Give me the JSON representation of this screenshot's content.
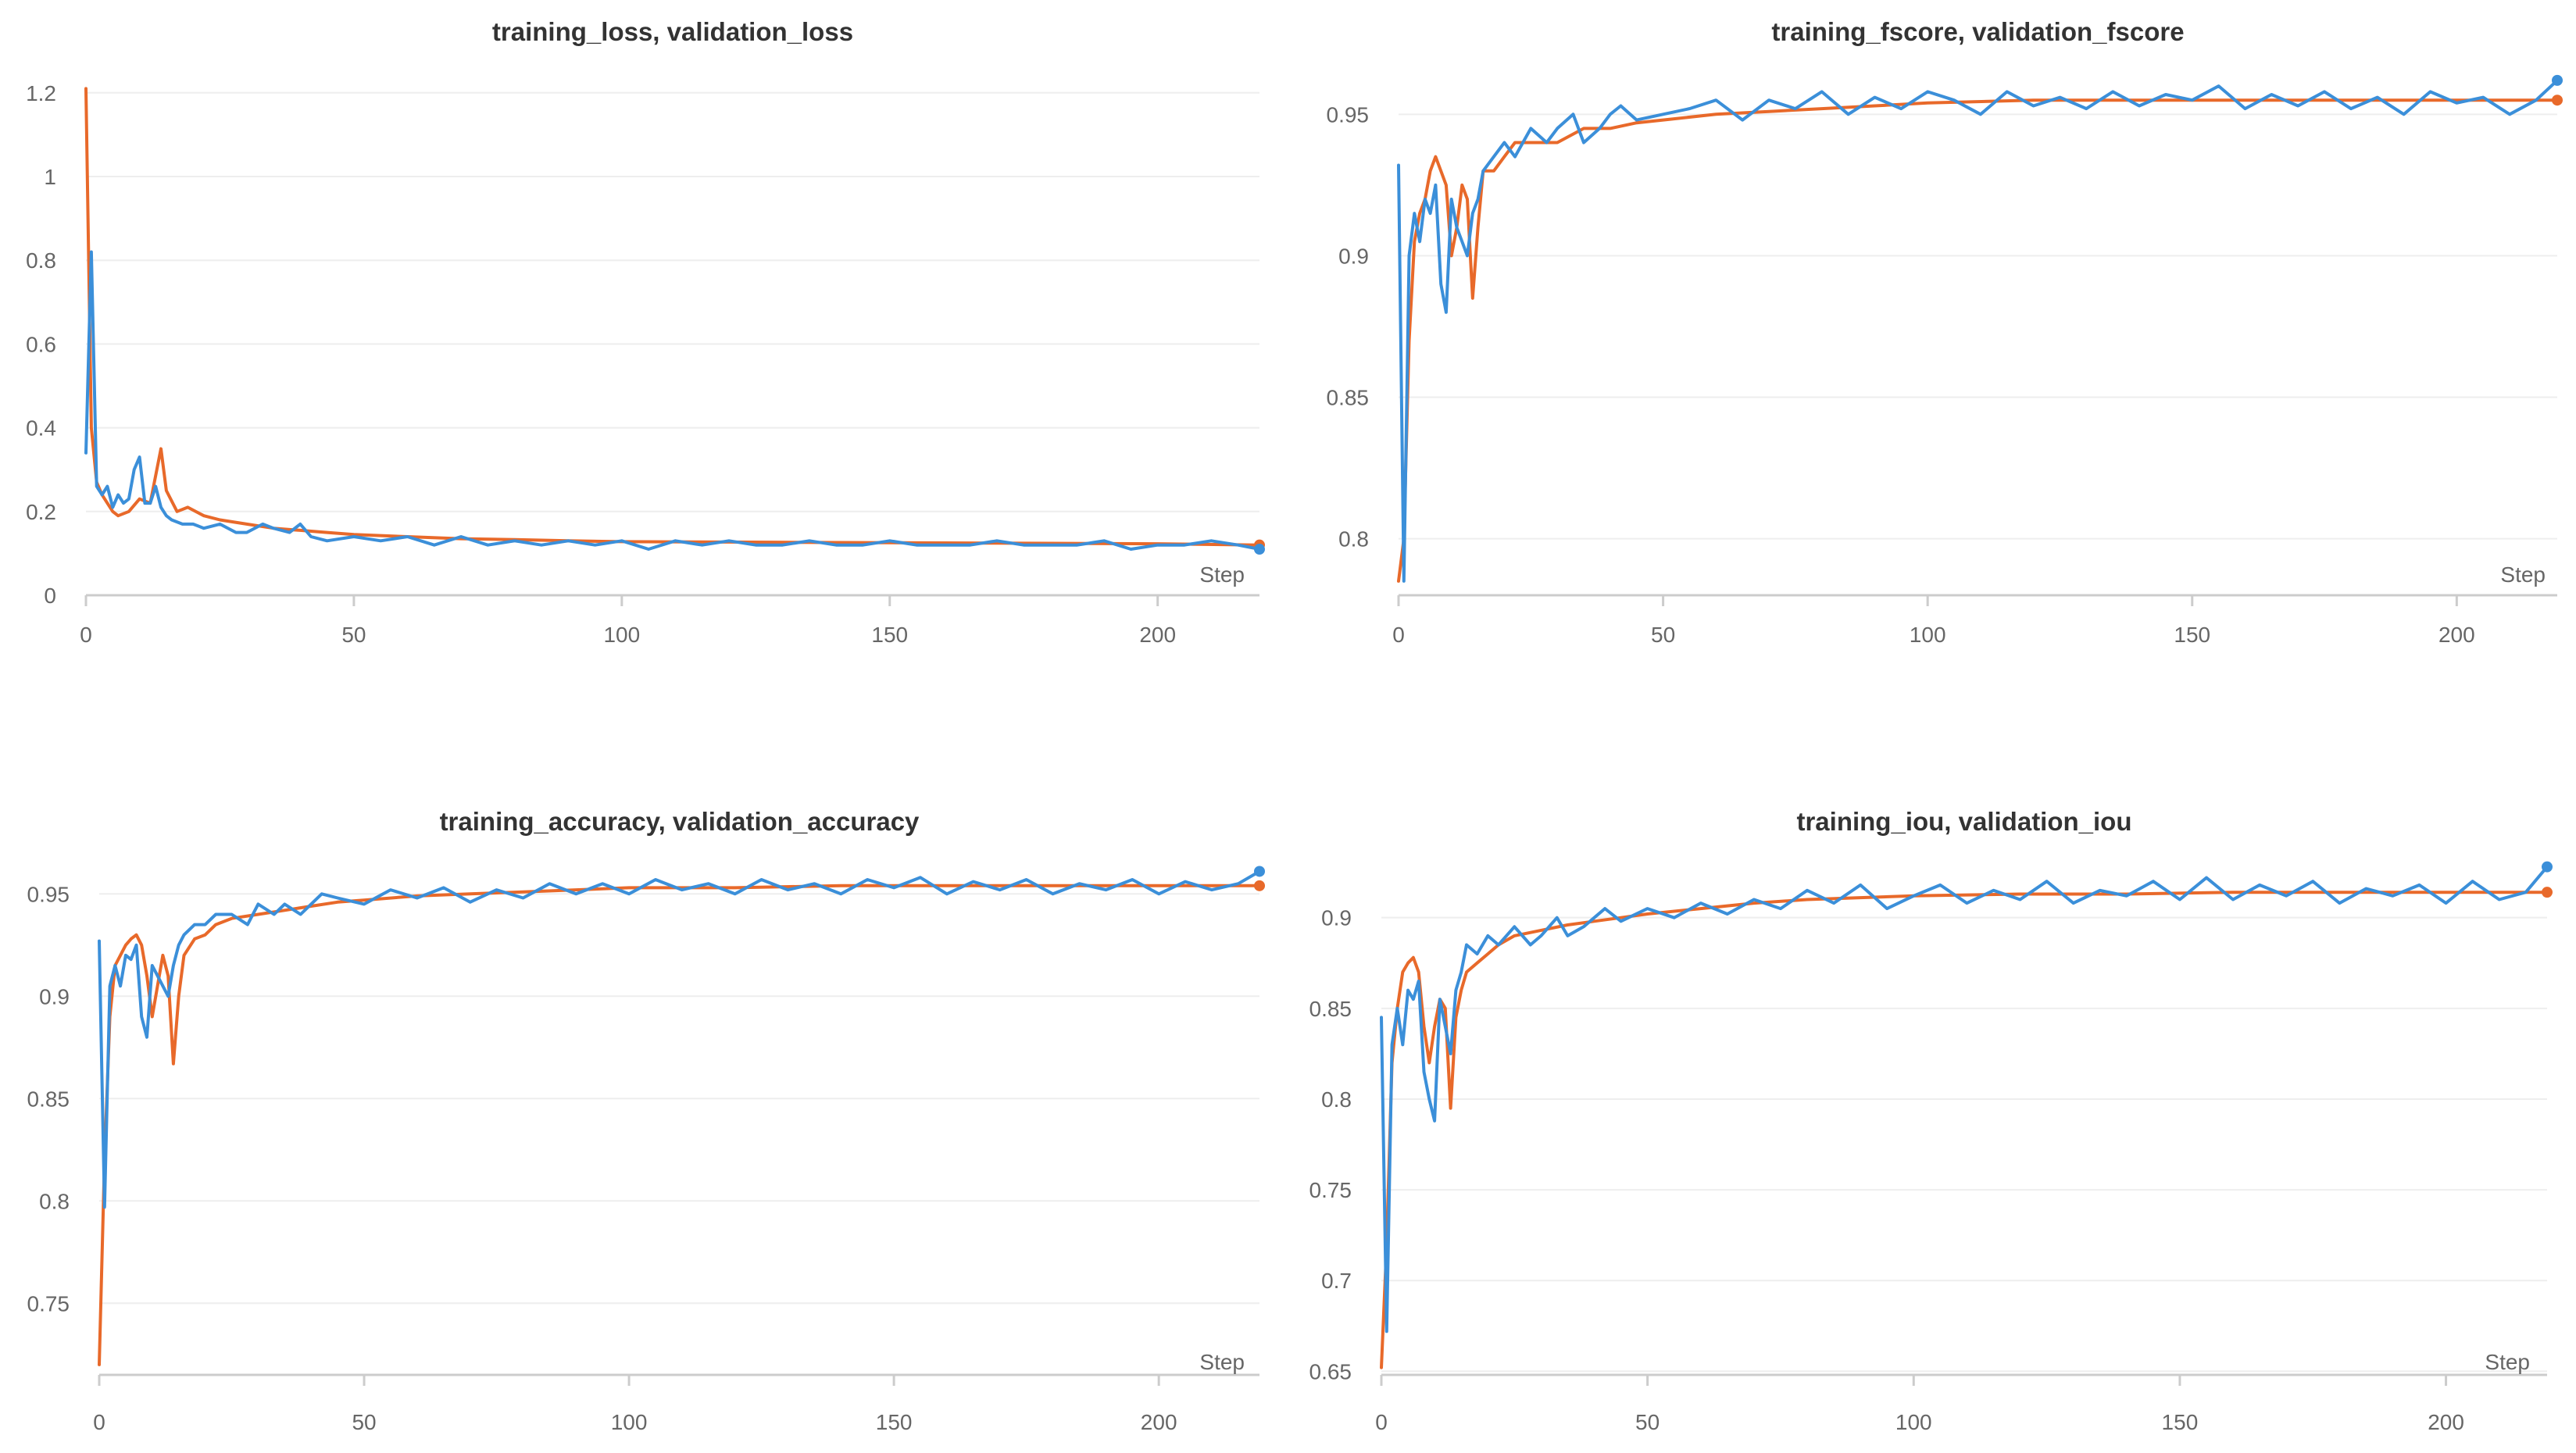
{
  "colors": {
    "training": "#e8692a",
    "validation": "#3b8fd9",
    "grid": "#eeeeee",
    "axis": "#cccccc",
    "text": "#666666",
    "title": "#333333"
  },
  "chart_data": [
    {
      "type": "line",
      "title": "training_loss, validation_loss",
      "xlabel": "Step",
      "ylabel": "",
      "xlim": [
        0,
        219
      ],
      "ylim": [
        0,
        1.25
      ],
      "xticks": [
        0,
        50,
        100,
        150,
        200
      ],
      "yticks": [
        0,
        0.2,
        0.4,
        0.6,
        0.8,
        1,
        1.2
      ],
      "ytick_labels": [
        "0",
        "0.2",
        "0.4",
        "0.6",
        "0.8",
        "1",
        "1.2"
      ],
      "grid": true,
      "series": [
        {
          "color": "#e8692a",
          "x": [
            0,
            1,
            2,
            3,
            4,
            5,
            6,
            8,
            10,
            12,
            14,
            15,
            17,
            19,
            22,
            25,
            30,
            35,
            40,
            45,
            50,
            60,
            70,
            80,
            90,
            100,
            120,
            140,
            160,
            180,
            200,
            219
          ],
          "y": [
            1.21,
            0.4,
            0.27,
            0.24,
            0.22,
            0.2,
            0.19,
            0.2,
            0.23,
            0.22,
            0.35,
            0.25,
            0.2,
            0.21,
            0.19,
            0.18,
            0.17,
            0.16,
            0.155,
            0.15,
            0.145,
            0.14,
            0.135,
            0.133,
            0.13,
            0.128,
            0.127,
            0.126,
            0.125,
            0.124,
            0.123,
            0.12
          ]
        },
        {
          "color": "#3b8fd9",
          "x": [
            0,
            1,
            2,
            3,
            4,
            5,
            6,
            7,
            8,
            9,
            10,
            11,
            12,
            13,
            14,
            15,
            16,
            18,
            20,
            22,
            25,
            28,
            30,
            33,
            35,
            38,
            40,
            42,
            45,
            50,
            55,
            60,
            65,
            70,
            75,
            80,
            85,
            90,
            95,
            100,
            105,
            110,
            115,
            120,
            125,
            130,
            135,
            140,
            145,
            150,
            155,
            160,
            165,
            170,
            175,
            180,
            185,
            190,
            195,
            200,
            205,
            210,
            215,
            219
          ],
          "y": [
            0.34,
            0.82,
            0.26,
            0.24,
            0.26,
            0.21,
            0.24,
            0.22,
            0.23,
            0.3,
            0.33,
            0.22,
            0.22,
            0.26,
            0.21,
            0.19,
            0.18,
            0.17,
            0.17,
            0.16,
            0.17,
            0.15,
            0.15,
            0.17,
            0.16,
            0.15,
            0.17,
            0.14,
            0.13,
            0.14,
            0.13,
            0.14,
            0.12,
            0.14,
            0.12,
            0.13,
            0.12,
            0.13,
            0.12,
            0.13,
            0.11,
            0.13,
            0.12,
            0.13,
            0.12,
            0.12,
            0.13,
            0.12,
            0.12,
            0.13,
            0.12,
            0.12,
            0.12,
            0.13,
            0.12,
            0.12,
            0.12,
            0.13,
            0.11,
            0.12,
            0.12,
            0.13,
            0.12,
            0.11
          ]
        }
      ]
    },
    {
      "type": "line",
      "title": "training_fscore, validation_fscore",
      "xlabel": "Step",
      "ylabel": "",
      "xlim": [
        0,
        219
      ],
      "ylim": [
        0.78,
        0.965
      ],
      "xticks": [
        0,
        50,
        100,
        150,
        200
      ],
      "yticks": [
        0.8,
        0.85,
        0.9,
        0.95
      ],
      "ytick_labels": [
        "0.8",
        "0.85",
        "0.9",
        "0.95"
      ],
      "grid": true,
      "series": [
        {
          "color": "#e8692a",
          "x": [
            0,
            1,
            2,
            3,
            4,
            5,
            6,
            7,
            8,
            9,
            10,
            11,
            12,
            13,
            14,
            15,
            16,
            18,
            20,
            22,
            25,
            30,
            35,
            40,
            45,
            50,
            60,
            70,
            80,
            90,
            100,
            120,
            140,
            160,
            180,
            200,
            219
          ],
          "y": [
            0.785,
            0.8,
            0.87,
            0.905,
            0.915,
            0.92,
            0.93,
            0.935,
            0.93,
            0.925,
            0.9,
            0.91,
            0.925,
            0.92,
            0.885,
            0.91,
            0.93,
            0.93,
            0.935,
            0.94,
            0.94,
            0.94,
            0.945,
            0.945,
            0.947,
            0.948,
            0.95,
            0.951,
            0.952,
            0.953,
            0.954,
            0.955,
            0.955,
            0.955,
            0.955,
            0.955,
            0.955
          ]
        },
        {
          "color": "#3b8fd9",
          "x": [
            0,
            1,
            2,
            3,
            4,
            5,
            6,
            7,
            8,
            9,
            10,
            11,
            12,
            13,
            14,
            15,
            16,
            18,
            20,
            22,
            25,
            28,
            30,
            33,
            35,
            38,
            40,
            42,
            45,
            50,
            55,
            60,
            65,
            70,
            75,
            80,
            85,
            90,
            95,
            100,
            105,
            110,
            115,
            120,
            125,
            130,
            135,
            140,
            145,
            150,
            155,
            160,
            165,
            170,
            175,
            180,
            185,
            190,
            195,
            200,
            205,
            210,
            215,
            219
          ],
          "y": [
            0.932,
            0.785,
            0.9,
            0.915,
            0.905,
            0.92,
            0.915,
            0.925,
            0.89,
            0.88,
            0.92,
            0.91,
            0.905,
            0.9,
            0.915,
            0.92,
            0.93,
            0.935,
            0.94,
            0.935,
            0.945,
            0.94,
            0.945,
            0.95,
            0.94,
            0.945,
            0.95,
            0.953,
            0.948,
            0.95,
            0.952,
            0.955,
            0.948,
            0.955,
            0.952,
            0.958,
            0.95,
            0.956,
            0.952,
            0.958,
            0.955,
            0.95,
            0.958,
            0.953,
            0.956,
            0.952,
            0.958,
            0.953,
            0.957,
            0.955,
            0.96,
            0.952,
            0.957,
            0.953,
            0.958,
            0.952,
            0.956,
            0.95,
            0.958,
            0.954,
            0.956,
            0.95,
            0.955,
            0.962
          ]
        }
      ]
    },
    {
      "type": "line",
      "title": "training_accuracy, validation_accuracy",
      "xlabel": "Step",
      "ylabel": "",
      "xlim": [
        0,
        219
      ],
      "ylim": [
        0.715,
        0.965
      ],
      "xticks": [
        0,
        50,
        100,
        150,
        200
      ],
      "yticks": [
        0.75,
        0.8,
        0.85,
        0.9,
        0.95
      ],
      "ytick_labels": [
        "0.75",
        "0.8",
        "0.85",
        "0.9",
        "0.95"
      ],
      "grid": true,
      "series": [
        {
          "color": "#e8692a",
          "x": [
            0,
            1,
            2,
            3,
            4,
            5,
            6,
            7,
            8,
            9,
            10,
            11,
            12,
            13,
            14,
            15,
            16,
            18,
            20,
            22,
            25,
            30,
            35,
            40,
            45,
            50,
            60,
            70,
            80,
            90,
            100,
            120,
            140,
            160,
            180,
            200,
            219
          ],
          "y": [
            0.72,
            0.82,
            0.89,
            0.915,
            0.92,
            0.925,
            0.928,
            0.93,
            0.925,
            0.91,
            0.89,
            0.905,
            0.92,
            0.91,
            0.867,
            0.9,
            0.92,
            0.928,
            0.93,
            0.935,
            0.938,
            0.94,
            0.942,
            0.944,
            0.946,
            0.947,
            0.949,
            0.95,
            0.951,
            0.952,
            0.953,
            0.953,
            0.954,
            0.954,
            0.954,
            0.954,
            0.954
          ]
        },
        {
          "color": "#3b8fd9",
          "x": [
            0,
            1,
            2,
            3,
            4,
            5,
            6,
            7,
            8,
            9,
            10,
            11,
            12,
            13,
            14,
            15,
            16,
            18,
            20,
            22,
            25,
            28,
            30,
            33,
            35,
            38,
            40,
            42,
            45,
            50,
            55,
            60,
            65,
            70,
            75,
            80,
            85,
            90,
            95,
            100,
            105,
            110,
            115,
            120,
            125,
            130,
            135,
            140,
            145,
            150,
            155,
            160,
            165,
            170,
            175,
            180,
            185,
            190,
            195,
            200,
            205,
            210,
            215,
            219
          ],
          "y": [
            0.927,
            0.797,
            0.905,
            0.915,
            0.905,
            0.92,
            0.918,
            0.925,
            0.89,
            0.88,
            0.915,
            0.91,
            0.905,
            0.9,
            0.915,
            0.925,
            0.93,
            0.935,
            0.935,
            0.94,
            0.94,
            0.935,
            0.945,
            0.94,
            0.945,
            0.94,
            0.945,
            0.95,
            0.948,
            0.945,
            0.952,
            0.948,
            0.953,
            0.946,
            0.952,
            0.948,
            0.955,
            0.95,
            0.955,
            0.95,
            0.957,
            0.952,
            0.955,
            0.95,
            0.957,
            0.952,
            0.955,
            0.95,
            0.957,
            0.953,
            0.958,
            0.95,
            0.956,
            0.952,
            0.957,
            0.95,
            0.955,
            0.952,
            0.957,
            0.95,
            0.956,
            0.952,
            0.955,
            0.961
          ]
        }
      ]
    },
    {
      "type": "line",
      "title": "training_iou, validation_iou",
      "xlabel": "Step",
      "ylabel": "",
      "xlim": [
        0,
        219
      ],
      "ylim": [
        0.648,
        0.93
      ],
      "xticks": [
        0,
        50,
        100,
        150,
        200
      ],
      "yticks": [
        0.65,
        0.7,
        0.75,
        0.8,
        0.85,
        0.9
      ],
      "ytick_labels": [
        "0.65",
        "0.7",
        "0.75",
        "0.8",
        "0.85",
        "0.9"
      ],
      "grid": true,
      "series": [
        {
          "color": "#e8692a",
          "x": [
            0,
            1,
            2,
            3,
            4,
            5,
            6,
            7,
            8,
            9,
            10,
            11,
            12,
            13,
            14,
            15,
            16,
            18,
            20,
            22,
            25,
            30,
            35,
            40,
            45,
            50,
            60,
            70,
            80,
            90,
            100,
            120,
            140,
            160,
            180,
            200,
            219
          ],
          "y": [
            0.652,
            0.72,
            0.82,
            0.85,
            0.87,
            0.875,
            0.878,
            0.87,
            0.84,
            0.82,
            0.84,
            0.855,
            0.85,
            0.795,
            0.845,
            0.86,
            0.87,
            0.875,
            0.88,
            0.885,
            0.89,
            0.893,
            0.896,
            0.898,
            0.9,
            0.902,
            0.905,
            0.908,
            0.91,
            0.911,
            0.912,
            0.913,
            0.913,
            0.914,
            0.914,
            0.914,
            0.914
          ]
        },
        {
          "color": "#3b8fd9",
          "x": [
            0,
            1,
            2,
            3,
            4,
            5,
            6,
            7,
            8,
            9,
            10,
            11,
            12,
            13,
            14,
            15,
            16,
            18,
            20,
            22,
            25,
            28,
            30,
            33,
            35,
            38,
            40,
            42,
            45,
            50,
            55,
            60,
            65,
            70,
            75,
            80,
            85,
            90,
            95,
            100,
            105,
            110,
            115,
            120,
            125,
            130,
            135,
            140,
            145,
            150,
            155,
            160,
            165,
            170,
            175,
            180,
            185,
            190,
            195,
            200,
            205,
            210,
            215,
            219
          ],
          "y": [
            0.845,
            0.672,
            0.83,
            0.85,
            0.83,
            0.86,
            0.855,
            0.865,
            0.815,
            0.8,
            0.788,
            0.855,
            0.84,
            0.825,
            0.86,
            0.87,
            0.885,
            0.88,
            0.89,
            0.885,
            0.895,
            0.885,
            0.89,
            0.9,
            0.89,
            0.895,
            0.9,
            0.905,
            0.898,
            0.905,
            0.9,
            0.908,
            0.902,
            0.91,
            0.905,
            0.915,
            0.908,
            0.918,
            0.905,
            0.912,
            0.918,
            0.908,
            0.915,
            0.91,
            0.92,
            0.908,
            0.915,
            0.912,
            0.92,
            0.91,
            0.922,
            0.91,
            0.918,
            0.912,
            0.92,
            0.908,
            0.916,
            0.912,
            0.918,
            0.908,
            0.92,
            0.91,
            0.914,
            0.928
          ]
        }
      ]
    }
  ]
}
